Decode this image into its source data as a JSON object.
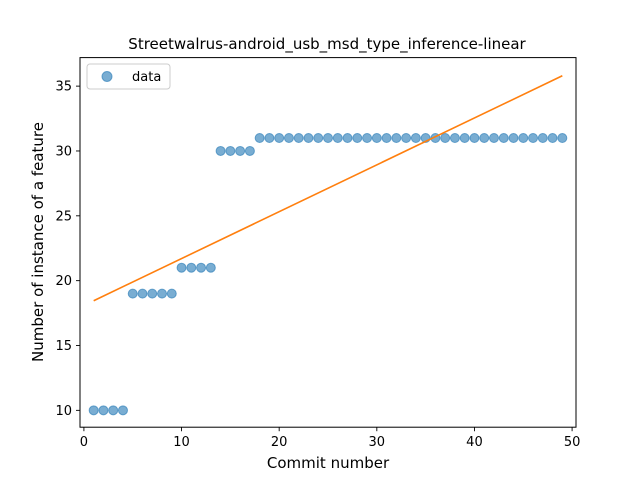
{
  "chart_data": {
    "type": "scatter",
    "title": "Streetwalrus-android_usb_msd_type_inference-linear",
    "xlabel": "Commit number",
    "ylabel": "Number of instance of a feature",
    "xlim": [
      -0.4,
      50.4
    ],
    "ylim": [
      8.7,
      37.2
    ],
    "xticks": [
      0,
      10,
      20,
      30,
      40,
      50
    ],
    "yticks": [
      10,
      15,
      20,
      25,
      30,
      35
    ],
    "legend": {
      "position": "top-left",
      "entries": [
        "data"
      ]
    },
    "grid": false,
    "colors": {
      "data": "#1f77b4",
      "fit": "#ff7f0e"
    },
    "series": [
      {
        "name": "data",
        "kind": "scatter",
        "x": [
          1,
          2,
          3,
          4,
          5,
          6,
          7,
          8,
          9,
          10,
          11,
          12,
          13,
          14,
          15,
          16,
          17,
          18,
          19,
          20,
          21,
          22,
          23,
          24,
          25,
          26,
          27,
          28,
          29,
          30,
          31,
          32,
          33,
          34,
          35,
          36,
          37,
          38,
          39,
          40,
          41,
          42,
          43,
          44,
          45,
          46,
          47,
          48,
          49
        ],
        "y": [
          10,
          10,
          10,
          10,
          19,
          19,
          19,
          19,
          19,
          21,
          21,
          21,
          21,
          30,
          30,
          30,
          30,
          31,
          31,
          31,
          31,
          31,
          31,
          31,
          31,
          31,
          31,
          31,
          31,
          31,
          31,
          31,
          31,
          31,
          31,
          31,
          31,
          31,
          31,
          31,
          31,
          31,
          31,
          31,
          31,
          31,
          31,
          31,
          31
        ]
      },
      {
        "kind": "line",
        "x": [
          1,
          49
        ],
        "y": [
          18.45,
          35.8
        ]
      }
    ]
  }
}
